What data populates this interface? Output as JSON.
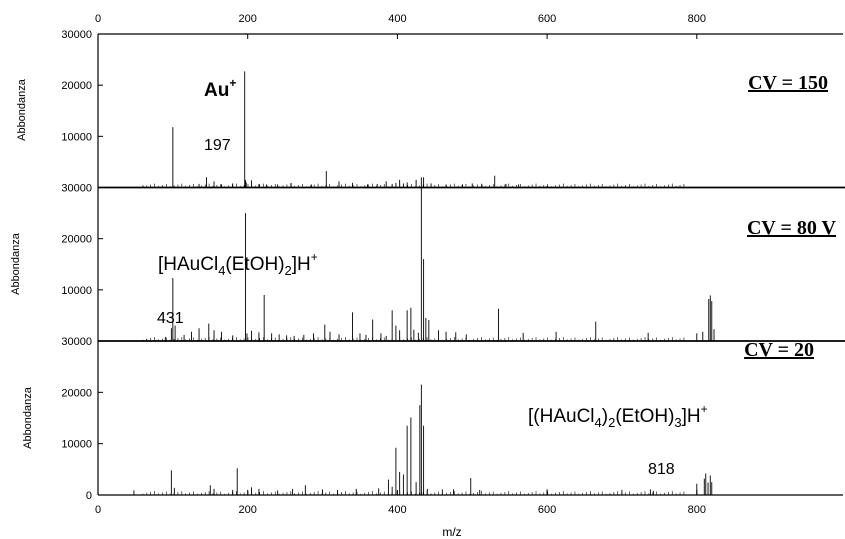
{
  "chart_data": {
    "type": "bar",
    "xlabel": "m/z",
    "xlim": [
      0,
      1000
    ],
    "xticks": [
      0,
      200,
      400,
      600,
      800
    ],
    "panels": [
      {
        "ylabel": "Abbondanza",
        "ylim": [
          0,
          30000
        ],
        "yticks": [
          10000,
          20000,
          30000
        ],
        "cv_label": "CV = 150",
        "ion_main": "Au",
        "ion_sup": "+",
        "mz_label": "197",
        "peaks": {
          "x": [
            60,
            100,
            135,
            145,
            155,
            165,
            180,
            196,
            197,
            198,
            205,
            215,
            225,
            240,
            258,
            285,
            305,
            322,
            340,
            360,
            373,
            385,
            393,
            398,
            403,
            408,
            413,
            425,
            432,
            435,
            445,
            465,
            487,
            500,
            513,
            530,
            545,
            562,
            600
          ],
          "y": [
            400,
            11800,
            700,
            2000,
            1200,
            600,
            800,
            22700,
            1500,
            1000,
            1400,
            700,
            600,
            600,
            900,
            600,
            3200,
            1200,
            900,
            600,
            700,
            1200,
            700,
            900,
            1500,
            800,
            1000,
            1500,
            2000,
            2000,
            800,
            600,
            600,
            800,
            600,
            2300,
            700,
            600,
            300
          ]
        }
      },
      {
        "ylabel": "Abbondanza",
        "ylim": [
          0,
          30000
        ],
        "yticks": [
          10000,
          20000,
          30000
        ],
        "cv_label": "CV = 80 V",
        "ion_main": "[HAuCl",
        "ion_sub1": "4",
        "ion_mid": "(EtOH)",
        "ion_sub2": "2",
        "ion_end": "]H",
        "ion_sup": "+",
        "mz_label": "431",
        "peaks": {
          "x": [
            65,
            90,
            98,
            100,
            103,
            115,
            125,
            135,
            148,
            155,
            165,
            180,
            197,
            199,
            205,
            215,
            222,
            232,
            242,
            252,
            262,
            275,
            288,
            303,
            310,
            322,
            340,
            350,
            358,
            367,
            378,
            385,
            393,
            398,
            403,
            413,
            418,
            422,
            428,
            432,
            435,
            438,
            442,
            455,
            465,
            478,
            492,
            535,
            568,
            612,
            665,
            735,
            800,
            808,
            816,
            818,
            820,
            823
          ],
          "y": [
            400,
            800,
            2500,
            12300,
            3000,
            1200,
            1800,
            2500,
            3400,
            2100,
            1800,
            1100,
            25000,
            1500,
            2000,
            1700,
            9000,
            1500,
            1300,
            1100,
            1000,
            1200,
            1500,
            3200,
            1800,
            1300,
            5600,
            1500,
            1200,
            4200,
            1500,
            1000,
            6000,
            3000,
            2100,
            6000,
            6500,
            2200,
            1600,
            32000,
            16000,
            4500,
            4100,
            2100,
            1800,
            1700,
            1300,
            6300,
            1600,
            1800,
            3800,
            1600,
            1500,
            1800,
            8200,
            8900,
            7800,
            2300
          ]
        }
      },
      {
        "ylabel": "Abbondanza",
        "ylim": [
          0,
          30000
        ],
        "yticks": [
          0,
          10000,
          20000,
          30000
        ],
        "cv_label": "CV = 20",
        "ion_main": "[(HAuCl",
        "ion_sub1": "4",
        "ion_mid": ")",
        "ion_sub2": "2",
        "ion_mid2": "(EtOH)",
        "ion_sub3": "3",
        "ion_end": "]H",
        "ion_sup": "+",
        "mz_label": "818",
        "peaks": {
          "x": [
            48,
            98,
            102,
            150,
            155,
            180,
            186,
            205,
            215,
            240,
            260,
            277,
            300,
            320,
            345,
            375,
            388,
            393,
            398,
            403,
            408,
            413,
            418,
            425,
            430,
            432,
            435,
            440,
            460,
            475,
            498,
            510,
            600,
            700,
            738,
            742,
            800,
            810,
            812,
            815,
            818,
            820
          ],
          "y": [
            900,
            4800,
            1400,
            1900,
            1200,
            1000,
            5200,
            1500,
            1200,
            900,
            1200,
            1900,
            1100,
            1000,
            1200,
            1300,
            3000,
            1600,
            9200,
            4500,
            4000,
            13500,
            15100,
            2500,
            17500,
            21500,
            13500,
            1200,
            1100,
            1100,
            3300,
            1000,
            1100,
            1000,
            1100,
            800,
            2200,
            3200,
            4200,
            2400,
            3800,
            2500
          ]
        }
      }
    ]
  }
}
